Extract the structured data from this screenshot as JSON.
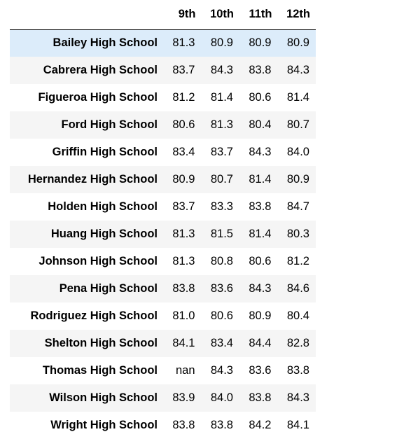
{
  "table": {
    "columns": [
      "",
      "9th",
      "10th",
      "11th",
      "12th"
    ],
    "rows": [
      {
        "school": "Bailey High School",
        "values": [
          "81.3",
          "80.9",
          "80.9",
          "80.9"
        ]
      },
      {
        "school": "Cabrera High School",
        "values": [
          "83.7",
          "84.3",
          "83.8",
          "84.3"
        ]
      },
      {
        "school": "Figueroa High School",
        "values": [
          "81.2",
          "81.4",
          "80.6",
          "81.4"
        ]
      },
      {
        "school": "Ford High School",
        "values": [
          "80.6",
          "81.3",
          "80.4",
          "80.7"
        ]
      },
      {
        "school": "Griffin High School",
        "values": [
          "83.4",
          "83.7",
          "84.3",
          "84.0"
        ]
      },
      {
        "school": "Hernandez High School",
        "values": [
          "80.9",
          "80.7",
          "81.4",
          "80.9"
        ]
      },
      {
        "school": "Holden High School",
        "values": [
          "83.7",
          "83.3",
          "83.8",
          "84.7"
        ]
      },
      {
        "school": "Huang High School",
        "values": [
          "81.3",
          "81.5",
          "81.4",
          "80.3"
        ]
      },
      {
        "school": "Johnson High School",
        "values": [
          "81.3",
          "80.8",
          "80.6",
          "81.2"
        ]
      },
      {
        "school": "Pena High School",
        "values": [
          "83.8",
          "83.6",
          "84.3",
          "84.6"
        ]
      },
      {
        "school": "Rodriguez High School",
        "values": [
          "81.0",
          "80.6",
          "80.9",
          "80.4"
        ]
      },
      {
        "school": "Shelton High School",
        "values": [
          "84.1",
          "83.4",
          "84.4",
          "82.8"
        ]
      },
      {
        "school": "Thomas High School",
        "values": [
          "nan",
          "84.3",
          "83.6",
          "83.8"
        ]
      },
      {
        "school": "Wilson High School",
        "values": [
          "83.9",
          "84.0",
          "83.8",
          "84.3"
        ]
      },
      {
        "school": "Wright High School",
        "values": [
          "83.8",
          "83.8",
          "84.2",
          "84.1"
        ]
      }
    ],
    "highlighted_row": 0,
    "colors": {
      "hover_row": "#dcecfa",
      "stripe_row": "#f5f5f5",
      "header_rule": "#000000"
    }
  }
}
